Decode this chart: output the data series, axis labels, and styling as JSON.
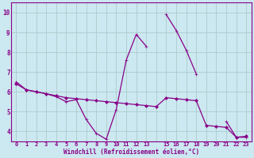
{
  "xlabel": "Windchill (Refroidissement éolien,°C)",
  "x_values": [
    0,
    1,
    2,
    3,
    4,
    5,
    6,
    7,
    8,
    9,
    10,
    11,
    12,
    13,
    14,
    15,
    16,
    17,
    18,
    19,
    20,
    21,
    22,
    23
  ],
  "line1_y": [
    6.5,
    6.1,
    6.0,
    5.9,
    5.75,
    5.5,
    5.6,
    4.6,
    3.9,
    3.6,
    5.1,
    7.6,
    8.9,
    8.3,
    null,
    9.9,
    9.1,
    8.1,
    6.9,
    null,
    null,
    4.5,
    3.7,
    3.7
  ],
  "line2_y": [
    6.4,
    6.1,
    6.0,
    5.9,
    5.8,
    5.7,
    5.65,
    5.6,
    5.55,
    5.5,
    5.45,
    5.4,
    5.35,
    5.3,
    5.25,
    5.7,
    5.65,
    5.6,
    5.55,
    4.3,
    4.25,
    4.2,
    3.7,
    3.75
  ],
  "line_color": "#880088",
  "bg_color": "#cce8f0",
  "grid_color": "#aacccc",
  "ylim": [
    3.5,
    10.5
  ],
  "xlim": [
    -0.5,
    23.5
  ],
  "yticks": [
    4,
    5,
    6,
    7,
    8,
    9,
    10
  ],
  "xtick_labels": [
    "0",
    "1",
    "2",
    "3",
    "4",
    "5",
    "6",
    "7",
    "8",
    "9",
    "10",
    "11",
    "12",
    "13",
    "",
    "15",
    "16",
    "17",
    "18",
    "19",
    "20",
    "21",
    "22",
    "23"
  ]
}
